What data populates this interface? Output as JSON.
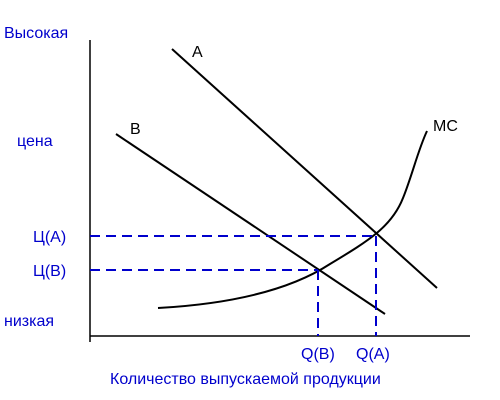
{
  "colors": {
    "curve": "#000000",
    "dash": "#0000cc",
    "text_blue": "#0000cc",
    "text_black": "#000000"
  },
  "y_axis": {
    "top_label": "Высокая",
    "mid_label": "цена",
    "bottom_label": "низкая"
  },
  "x_axis": {
    "label": "Количество выпускаемой продукции"
  },
  "curves": {
    "demand_a": "A",
    "demand_b": "B",
    "marginal_cost": "MC"
  },
  "prices": {
    "a": "Ц(А)",
    "b": "Ц(В)"
  },
  "quantities": {
    "b": "Q(B)",
    "a": "Q(A)"
  }
}
